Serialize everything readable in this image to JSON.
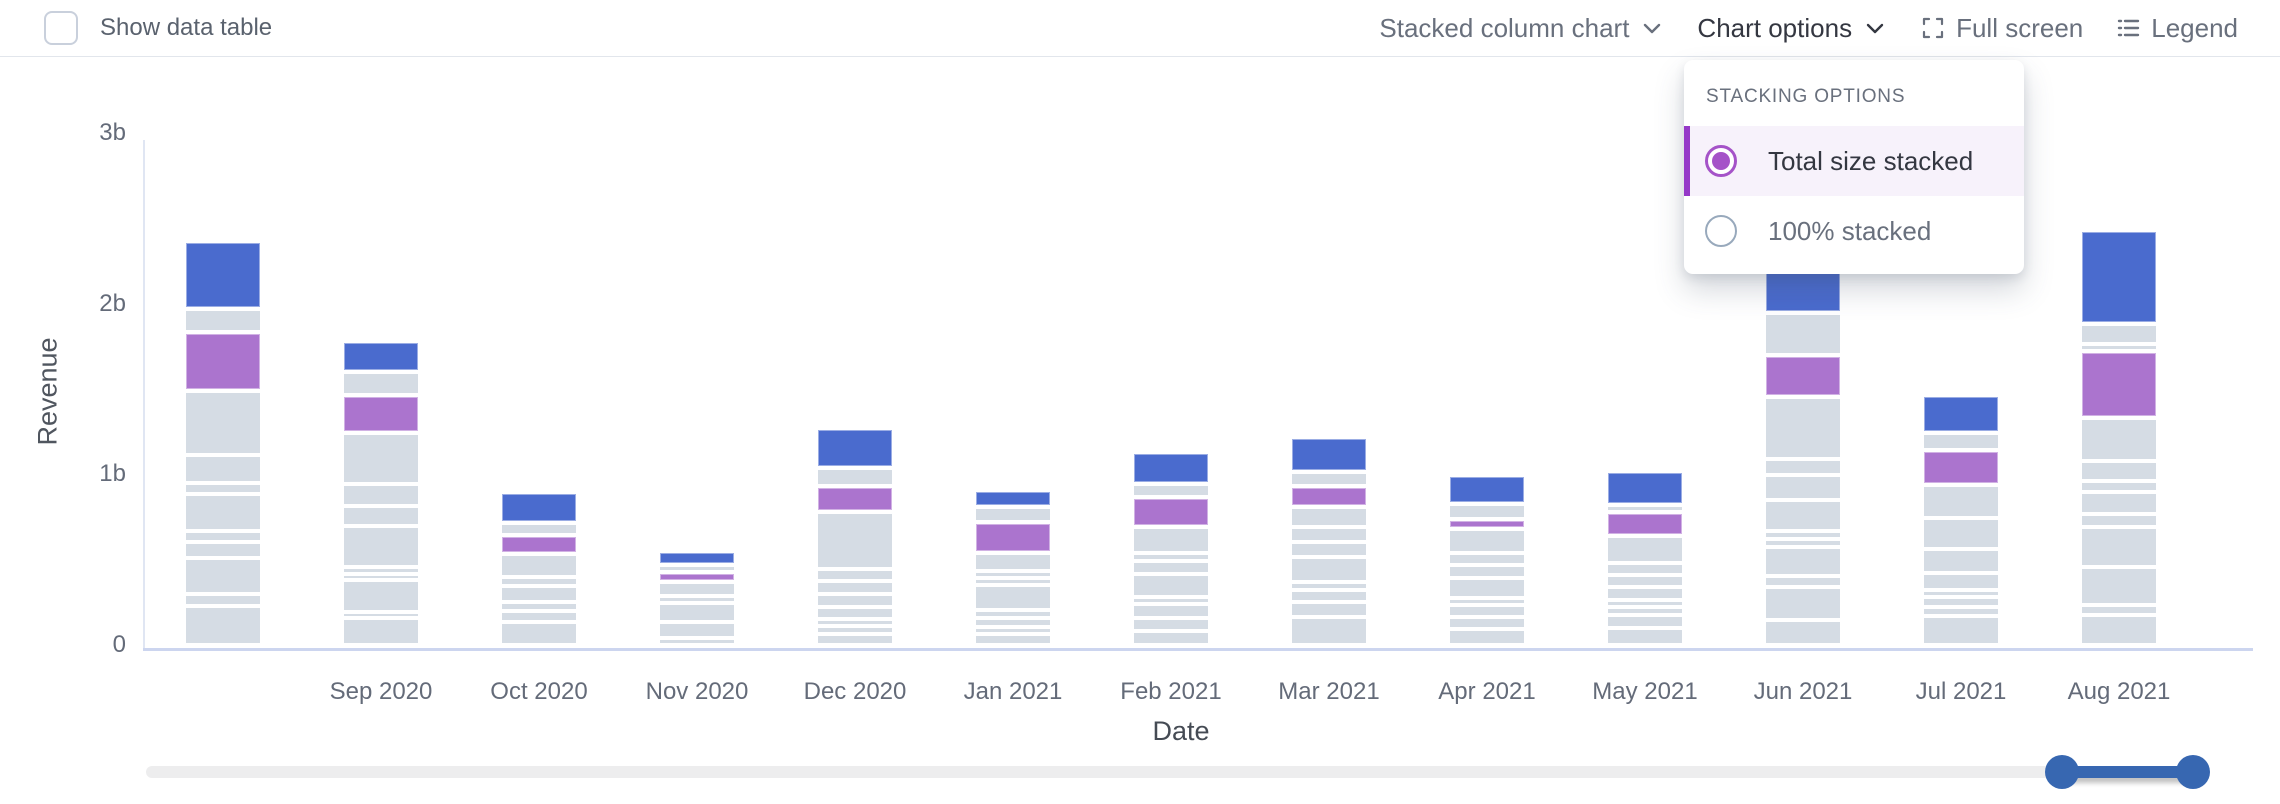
{
  "header": {
    "show_data_table_label": "Show data table",
    "show_data_table_checked": false,
    "chart_type_label": "Stacked column chart",
    "chart_options_label": "Chart options",
    "full_screen_label": "Full screen",
    "legend_label": "Legend"
  },
  "stacking_menu": {
    "title": "STACKING OPTIONS",
    "options": [
      {
        "label": "Total size stacked",
        "selected": true
      },
      {
        "label": "100% stacked",
        "selected": false
      }
    ]
  },
  "colors": {
    "series_blue": "#4a6bce",
    "series_purple": "#ab74ce",
    "series_gray": "#d5dce4",
    "menu_accent_purple": "#9538c8",
    "menu_radio_purple": "#a553c8",
    "menu_selected_bg": "#f7f2fb",
    "slider_blue": "#3767b1",
    "axis_line": "#ccd5ef",
    "text_dark": "#343741",
    "text_gray": "#69707d"
  },
  "chart_data": {
    "type": "bar",
    "stacked": true,
    "stacking_mode": "Total size stacked",
    "xlabel": "Date",
    "ylabel": "Revenue",
    "y_ticks": [
      "0",
      "1b",
      "2b",
      "3b"
    ],
    "ylim_billions": [
      0,
      3
    ],
    "value_unit": "billions of revenue (b)",
    "grid": false,
    "legend_position": "hidden",
    "series_note": "Each column is month revenue split into many stacked segments; two highlighted series (blue=top, purple=mid), remaining segments gray. c: b=blue, p=purple, g=gray. v in billions.",
    "categories": [
      "",
      "Sep 2020",
      "Oct 2020",
      "Nov 2020",
      "Dec 2020",
      "Jan 2021",
      "Feb 2021",
      "Mar 2021",
      "Apr 2021",
      "May 2021",
      "Jun 2021",
      "Jul 2021",
      "Aug 2021"
    ],
    "bars": [
      {
        "label": "",
        "total_b": 2.33,
        "segments": [
          {
            "c": "b",
            "v": 0.375
          },
          {
            "c": "g",
            "v": 0.111
          },
          {
            "c": "p",
            "v": 0.323
          },
          {
            "c": "g",
            "v": 0.352
          },
          {
            "c": "g",
            "v": 0.141
          },
          {
            "c": "g",
            "v": 0.041
          },
          {
            "c": "g",
            "v": 0.194
          },
          {
            "c": "g",
            "v": 0.041
          },
          {
            "c": "g",
            "v": 0.07
          },
          {
            "c": "g",
            "v": 0.188
          },
          {
            "c": "g",
            "v": 0.047
          },
          {
            "c": "g",
            "v": 0.205
          }
        ]
      },
      {
        "label": "Sep 2020",
        "total_b": 1.72,
        "segments": [
          {
            "c": "b",
            "v": 0.158
          },
          {
            "c": "g",
            "v": 0.111
          },
          {
            "c": "p",
            "v": 0.199
          },
          {
            "c": "g",
            "v": 0.276
          },
          {
            "c": "g",
            "v": 0.106
          },
          {
            "c": "g",
            "v": 0.094
          },
          {
            "c": "g",
            "v": 0.217
          },
          {
            "c": "g",
            "v": 0.018
          },
          {
            "c": "g",
            "v": 0.012
          },
          {
            "c": "g",
            "v": 0.164
          },
          {
            "c": "g",
            "v": 0.012
          },
          {
            "c": "g",
            "v": 0.135
          }
        ]
      },
      {
        "label": "Oct 2020",
        "total_b": 0.87,
        "segments": [
          {
            "c": "b",
            "v": 0.158
          },
          {
            "c": "g",
            "v": 0.047
          },
          {
            "c": "p",
            "v": 0.088
          },
          {
            "c": "g",
            "v": 0.111
          },
          {
            "c": "g",
            "v": 0.029
          },
          {
            "c": "g",
            "v": 0.07
          },
          {
            "c": "g",
            "v": 0.029
          },
          {
            "c": "g",
            "v": 0.041
          },
          {
            "c": "g",
            "v": 0.112
          }
        ]
      },
      {
        "label": "Nov 2020",
        "total_b": 0.5,
        "segments": [
          {
            "c": "b",
            "v": 0.059
          },
          {
            "c": "g",
            "v": 0.018
          },
          {
            "c": "p",
            "v": 0.035
          },
          {
            "c": "g",
            "v": 0.059
          },
          {
            "c": "g",
            "v": 0.018
          },
          {
            "c": "g",
            "v": 0.088
          },
          {
            "c": "g",
            "v": 0.07
          },
          {
            "c": "g",
            "v": 0.018
          }
        ]
      },
      {
        "label": "Dec 2020",
        "total_b": 1.2,
        "segments": [
          {
            "c": "b",
            "v": 0.211
          },
          {
            "c": "g",
            "v": 0.082
          },
          {
            "c": "p",
            "v": 0.129
          },
          {
            "c": "g",
            "v": 0.31
          },
          {
            "c": "g",
            "v": 0.047
          },
          {
            "c": "g",
            "v": 0.053
          },
          {
            "c": "g",
            "v": 0.053
          },
          {
            "c": "g",
            "v": 0.047
          },
          {
            "c": "g",
            "v": 0.018
          },
          {
            "c": "g",
            "v": 0.023
          },
          {
            "c": "g",
            "v": 0.041
          }
        ]
      },
      {
        "label": "Jan 2021",
        "total_b": 0.87,
        "segments": [
          {
            "c": "b",
            "v": 0.076
          },
          {
            "c": "g",
            "v": 0.065
          },
          {
            "c": "p",
            "v": 0.158
          },
          {
            "c": "g",
            "v": 0.082
          },
          {
            "c": "g",
            "v": 0.018
          },
          {
            "c": "g",
            "v": 0.018
          },
          {
            "c": "g",
            "v": 0.123
          },
          {
            "c": "g",
            "v": 0.023
          },
          {
            "c": "g",
            "v": 0.029
          },
          {
            "c": "g",
            "v": 0.018
          },
          {
            "c": "g",
            "v": 0.041
          }
        ]
      },
      {
        "label": "Feb 2021",
        "total_b": 1.07,
        "segments": [
          {
            "c": "b",
            "v": 0.164
          },
          {
            "c": "g",
            "v": 0.053
          },
          {
            "c": "p",
            "v": 0.152
          },
          {
            "c": "g",
            "v": 0.129
          },
          {
            "c": "g",
            "v": 0.023
          },
          {
            "c": "g",
            "v": 0.053
          },
          {
            "c": "g",
            "v": 0.111
          },
          {
            "c": "g",
            "v": 0.018
          },
          {
            "c": "g",
            "v": 0.059
          },
          {
            "c": "g",
            "v": 0.053
          },
          {
            "c": "g",
            "v": 0.059
          }
        ]
      },
      {
        "label": "Mar 2021",
        "total_b": 1.2,
        "segments": [
          {
            "c": "b",
            "v": 0.182
          },
          {
            "c": "g",
            "v": 0.059
          },
          {
            "c": "p",
            "v": 0.1
          },
          {
            "c": "g",
            "v": 0.094
          },
          {
            "c": "g",
            "v": 0.065
          },
          {
            "c": "g",
            "v": 0.065
          },
          {
            "c": "g",
            "v": 0.123
          },
          {
            "c": "g",
            "v": 0.023
          },
          {
            "c": "g",
            "v": 0.047
          },
          {
            "c": "g",
            "v": 0.065
          },
          {
            "c": "g",
            "v": 0.141
          }
        ]
      },
      {
        "label": "Apr 2021",
        "total_b": 0.97,
        "segments": [
          {
            "c": "b",
            "v": 0.147
          },
          {
            "c": "g",
            "v": 0.065
          },
          {
            "c": "p",
            "v": 0.035
          },
          {
            "c": "g",
            "v": 0.117
          },
          {
            "c": "g",
            "v": 0.047
          },
          {
            "c": "g",
            "v": 0.053
          },
          {
            "c": "g",
            "v": 0.094
          },
          {
            "c": "g",
            "v": 0.018
          },
          {
            "c": "g",
            "v": 0.047
          },
          {
            "c": "g",
            "v": 0.047
          },
          {
            "c": "g",
            "v": 0.07
          }
        ]
      },
      {
        "label": "May 2021",
        "total_b": 0.97,
        "segments": [
          {
            "c": "b",
            "v": 0.176
          },
          {
            "c": "g",
            "v": 0.018
          },
          {
            "c": "p",
            "v": 0.117
          },
          {
            "c": "g",
            "v": 0.135
          },
          {
            "c": "g",
            "v": 0.047
          },
          {
            "c": "g",
            "v": 0.047
          },
          {
            "c": "g",
            "v": 0.053
          },
          {
            "c": "g",
            "v": 0.018
          },
          {
            "c": "g",
            "v": 0.023
          },
          {
            "c": "g",
            "v": 0.053
          },
          {
            "c": "g",
            "v": 0.076
          }
        ]
      },
      {
        "label": "Jun 2021",
        "total_b": 2.2,
        "segments": [
          {
            "c": "b",
            "v": 0.24
          },
          {
            "c": "g",
            "v": 0.223
          },
          {
            "c": "p",
            "v": 0.223
          },
          {
            "c": "g",
            "v": 0.34
          },
          {
            "c": "g",
            "v": 0.07
          },
          {
            "c": "g",
            "v": 0.123
          },
          {
            "c": "g",
            "v": 0.158
          },
          {
            "c": "g",
            "v": 0.023
          },
          {
            "c": "g",
            "v": 0.023
          },
          {
            "c": "g",
            "v": 0.147
          },
          {
            "c": "g",
            "v": 0.041
          },
          {
            "c": "g",
            "v": 0.17
          },
          {
            "c": "g",
            "v": 0.123
          }
        ]
      },
      {
        "label": "Jul 2021",
        "total_b": 1.42,
        "segments": [
          {
            "c": "b",
            "v": 0.199
          },
          {
            "c": "g",
            "v": 0.076
          },
          {
            "c": "p",
            "v": 0.182
          },
          {
            "c": "g",
            "v": 0.17
          },
          {
            "c": "g",
            "v": 0.158
          },
          {
            "c": "g",
            "v": 0.117
          },
          {
            "c": "g",
            "v": 0.076
          },
          {
            "c": "g",
            "v": 0.018
          },
          {
            "c": "g",
            "v": 0.035
          },
          {
            "c": "g",
            "v": 0.029
          },
          {
            "c": "g",
            "v": 0.147
          }
        ]
      },
      {
        "label": "Aug 2021",
        "total_b": 2.4,
        "segments": [
          {
            "c": "b",
            "v": 0.528
          },
          {
            "c": "g",
            "v": 0.094
          },
          {
            "c": "g",
            "v": 0.018
          },
          {
            "c": "p",
            "v": 0.369
          },
          {
            "c": "g",
            "v": 0.229
          },
          {
            "c": "g",
            "v": 0.094
          },
          {
            "c": "g",
            "v": 0.041
          },
          {
            "c": "g",
            "v": 0.106
          },
          {
            "c": "g",
            "v": 0.053
          },
          {
            "c": "g",
            "v": 0.211
          },
          {
            "c": "g",
            "v": 0.199
          },
          {
            "c": "g",
            "v": 0.035
          },
          {
            "c": "g",
            "v": 0.152
          }
        ]
      }
    ]
  }
}
